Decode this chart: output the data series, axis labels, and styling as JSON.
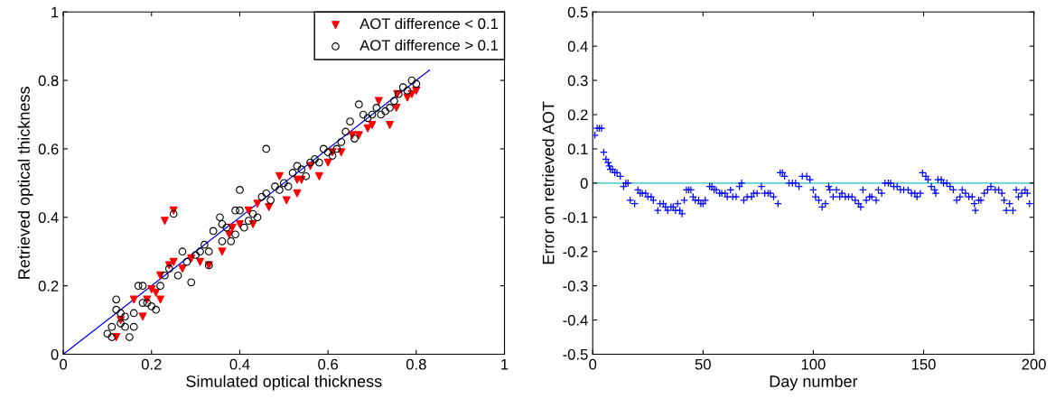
{
  "chart_data": [
    {
      "type": "scatter",
      "xlabel": "Simulated optical thickness",
      "ylabel": "Retrieved optical thickness",
      "xlim": [
        0,
        1
      ],
      "ylim": [
        0,
        1
      ],
      "xticks": [
        0,
        0.2,
        0.4,
        0.6,
        0.8,
        1
      ],
      "yticks": [
        0,
        0.2,
        0.4,
        0.6,
        0.8,
        1
      ],
      "grid": false,
      "legend": "top right",
      "series": [
        {
          "name": "AOT difference < 0.1",
          "color": "#ff0000",
          "marker": "triangle",
          "x": [
            0.12,
            0.13,
            0.18,
            0.16,
            0.19,
            0.2,
            0.21,
            0.22,
            0.22,
            0.23,
            0.24,
            0.25,
            0.25,
            0.27,
            0.29,
            0.31,
            0.33,
            0.36,
            0.376,
            0.383,
            0.4,
            0.42,
            0.43,
            0.44,
            0.466,
            0.49,
            0.506,
            0.53,
            0.53,
            0.54,
            0.56,
            0.58,
            0.6,
            0.61,
            0.63,
            0.655,
            0.67,
            0.69,
            0.7,
            0.715,
            0.74,
            0.755,
            0.757,
            0.78,
            0.79,
            0.8
          ],
          "values": [
            0.05,
            0.1,
            0.11,
            0.16,
            0.16,
            0.19,
            0.18,
            0.16,
            0.23,
            0.39,
            0.26,
            0.27,
            0.42,
            0.25,
            0.28,
            0.27,
            0.26,
            0.3,
            0.35,
            0.37,
            0.38,
            0.42,
            0.38,
            0.44,
            0.43,
            0.52,
            0.45,
            0.47,
            0.51,
            0.51,
            0.55,
            0.52,
            0.56,
            0.59,
            0.59,
            0.64,
            0.64,
            0.66,
            0.67,
            0.74,
            0.67,
            0.72,
            0.76,
            0.75,
            0.76,
            0.77
          ]
        },
        {
          "name": "AOT difference > 0.1",
          "color": "#000000",
          "marker": "circle",
          "x": [
            0.1,
            0.11,
            0.11,
            0.12,
            0.12,
            0.13,
            0.13,
            0.14,
            0.14,
            0.15,
            0.16,
            0.16,
            0.17,
            0.18,
            0.18,
            0.19,
            0.2,
            0.21,
            0.22,
            0.23,
            0.24,
            0.25,
            0.26,
            0.27,
            0.28,
            0.29,
            0.3,
            0.31,
            0.32,
            0.33,
            0.33,
            0.34,
            0.355,
            0.36,
            0.36,
            0.37,
            0.38,
            0.39,
            0.39,
            0.4,
            0.4,
            0.41,
            0.42,
            0.43,
            0.44,
            0.45,
            0.46,
            0.46,
            0.47,
            0.48,
            0.49,
            0.5,
            0.51,
            0.52,
            0.53,
            0.54,
            0.55,
            0.56,
            0.57,
            0.58,
            0.59,
            0.6,
            0.61,
            0.62,
            0.63,
            0.64,
            0.65,
            0.66,
            0.67,
            0.68,
            0.69,
            0.7,
            0.71,
            0.72,
            0.73,
            0.74,
            0.75,
            0.76,
            0.77,
            0.78,
            0.79,
            0.8
          ],
          "values": [
            0.06,
            0.05,
            0.08,
            0.13,
            0.16,
            0.12,
            0.09,
            0.11,
            0.08,
            0.05,
            0.12,
            0.08,
            0.2,
            0.2,
            0.15,
            0.15,
            0.14,
            0.13,
            0.2,
            0.23,
            0.25,
            0.41,
            0.23,
            0.3,
            0.27,
            0.21,
            0.29,
            0.3,
            0.32,
            0.3,
            0.26,
            0.36,
            0.4,
            0.33,
            0.38,
            0.37,
            0.33,
            0.35,
            0.42,
            0.48,
            0.42,
            0.37,
            0.39,
            0.41,
            0.4,
            0.46,
            0.6,
            0.47,
            0.45,
            0.49,
            0.48,
            0.5,
            0.49,
            0.53,
            0.55,
            0.54,
            0.52,
            0.56,
            0.57,
            0.56,
            0.6,
            0.59,
            0.58,
            0.6,
            0.62,
            0.65,
            0.68,
            0.63,
            0.73,
            0.7,
            0.69,
            0.7,
            0.72,
            0.7,
            0.71,
            0.72,
            0.74,
            0.76,
            0.78,
            0.77,
            0.8,
            0.79
          ]
        },
        {
          "type": "line",
          "color": "#0000ff",
          "x": [
            0,
            0.83
          ],
          "values": [
            0,
            0.83
          ]
        }
      ]
    },
    {
      "type": "scatter",
      "xlabel": "Day number",
      "ylabel": "Error on retrieved AOT",
      "xlim": [
        0,
        200
      ],
      "ylim": [
        -0.5,
        0.5
      ],
      "xticks": [
        0,
        50,
        100,
        150,
        200
      ],
      "yticks": [
        -0.5,
        -0.4,
        -0.3,
        -0.2,
        -0.1,
        0,
        0.1,
        0.2,
        0.3,
        0.4,
        0.5
      ],
      "grid": false,
      "legend": false,
      "ref_lines": [
        {
          "axis": "y",
          "value": 0,
          "color": "#5fd3d3"
        }
      ],
      "series": [
        {
          "color": "#0000ff",
          "marker": "cross",
          "x": [
            1,
            2,
            3,
            4,
            5,
            6,
            7,
            7.5,
            8,
            9,
            10,
            11,
            12.5,
            14,
            15,
            16,
            17,
            19,
            20.5,
            21.5,
            22.5,
            24,
            25,
            26.5,
            27.5,
            29.5,
            30.5,
            32,
            33,
            34,
            35.5,
            36.5,
            37.5,
            38.5,
            39.5,
            40.5,
            41.5,
            42.5,
            43.5,
            44.5,
            45.5,
            46.5,
            48,
            49,
            50,
            51,
            53,
            54,
            55,
            56,
            57.5,
            58.5,
            60,
            61,
            62.5,
            63.5,
            65,
            66.5,
            67.5,
            68.5,
            70,
            72,
            73,
            74.5,
            76.5,
            78,
            79.5,
            80.5,
            82,
            84,
            85,
            86,
            87,
            89,
            90.5,
            92,
            93.5,
            95,
            97,
            98.5,
            100,
            101,
            102.5,
            104,
            105.5,
            107,
            107.5,
            109,
            110.5,
            112,
            113,
            114.5,
            116,
            117.5,
            119,
            120.5,
            121.5,
            122.5,
            124,
            125.5,
            126.5,
            128.5,
            129.5,
            131,
            132.5,
            134,
            135,
            136.5,
            138,
            139.5,
            141,
            143,
            144.5,
            146,
            147,
            148.5,
            149.5,
            151,
            152,
            153.5,
            155,
            155.5,
            156.5,
            158,
            159,
            160.5,
            162,
            163.5,
            165,
            166.5,
            167.5,
            169,
            170.5,
            172,
            173,
            173.5,
            175,
            176,
            177.5,
            179,
            180.5,
            182.5,
            184,
            185.5,
            186.5,
            187.5,
            189,
            190.5,
            192,
            193,
            194.5,
            196,
            197,
            198
          ],
          "values": [
            0.14,
            0.16,
            0.16,
            0.16,
            0.09,
            0.07,
            0.06,
            0.05,
            0.04,
            0.04,
            0.03,
            0.03,
            0.02,
            -0.01,
            0.0,
            0.0,
            -0.05,
            -0.06,
            -0.02,
            -0.03,
            -0.03,
            -0.03,
            -0.04,
            -0.04,
            -0.05,
            -0.08,
            -0.06,
            -0.06,
            -0.07,
            -0.08,
            -0.07,
            -0.07,
            -0.08,
            -0.06,
            -0.08,
            -0.09,
            -0.05,
            -0.02,
            -0.02,
            -0.02,
            -0.04,
            -0.05,
            -0.05,
            -0.06,
            -0.06,
            -0.05,
            -0.01,
            -0.01,
            -0.02,
            -0.02,
            -0.03,
            -0.03,
            -0.03,
            -0.04,
            -0.02,
            -0.04,
            -0.04,
            -0.01,
            0.0,
            -0.05,
            -0.04,
            -0.04,
            -0.03,
            -0.03,
            -0.01,
            -0.03,
            -0.03,
            -0.03,
            -0.04,
            -0.06,
            0.03,
            0.03,
            0.02,
            0.0,
            0.0,
            0.0,
            -0.01,
            0.02,
            0.02,
            0.01,
            -0.02,
            -0.04,
            -0.05,
            -0.07,
            -0.06,
            -0.01,
            -0.02,
            -0.04,
            -0.02,
            -0.04,
            -0.03,
            -0.04,
            -0.04,
            -0.04,
            -0.05,
            -0.06,
            -0.07,
            -0.02,
            -0.05,
            -0.04,
            -0.04,
            -0.05,
            -0.02,
            -0.03,
            0.0,
            0.0,
            0.0,
            -0.01,
            -0.01,
            -0.02,
            -0.02,
            -0.02,
            -0.03,
            -0.03,
            -0.04,
            -0.03,
            0.03,
            0.02,
            0.01,
            -0.01,
            -0.02,
            -0.03,
            0.01,
            0.01,
            0.0,
            0.0,
            -0.01,
            -0.02,
            -0.05,
            -0.04,
            -0.02,
            -0.03,
            -0.04,
            -0.04,
            -0.06,
            -0.08,
            -0.05,
            -0.05,
            -0.03,
            -0.02,
            -0.01,
            -0.02,
            -0.02,
            -0.03,
            -0.05,
            -0.08,
            -0.06,
            -0.08,
            -0.02,
            -0.04,
            -0.03,
            -0.02,
            -0.03,
            -0.06
          ]
        }
      ]
    }
  ]
}
